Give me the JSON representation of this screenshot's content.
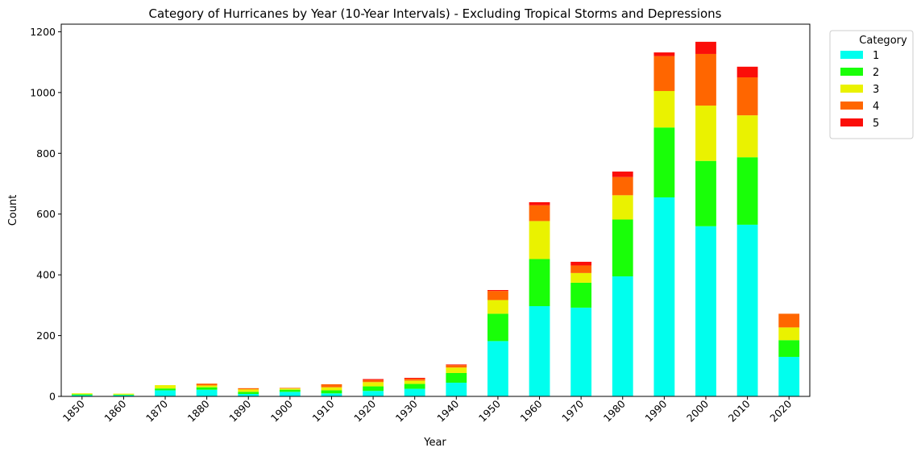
{
  "chart_data": {
    "type": "bar",
    "stacked": true,
    "title": "Category of Hurricanes by Year (10-Year Intervals) - Excluding Tropical Storms and Depressions",
    "xlabel": "Year",
    "ylabel": "Count",
    "ylim": [
      0,
      1225
    ],
    "yticks": [
      0,
      200,
      400,
      600,
      800,
      1000,
      1200
    ],
    "categories": [
      "1850",
      "1860",
      "1870",
      "1880",
      "1890",
      "1900",
      "1910",
      "1920",
      "1930",
      "1940",
      "1950",
      "1960",
      "1970",
      "1980",
      "1990",
      "2000",
      "2010",
      "2020"
    ],
    "legend_title": "Category",
    "legend_position": "outside upper right",
    "grid": false,
    "series": [
      {
        "name": "1",
        "color": "#00ffee",
        "values": [
          4,
          4,
          20,
          22,
          8,
          15,
          10,
          18,
          25,
          45,
          182,
          297,
          292,
          395,
          655,
          560,
          565,
          130
        ]
      },
      {
        "name": "2",
        "color": "#19ff08",
        "values": [
          3,
          2,
          6,
          8,
          7,
          7,
          10,
          15,
          16,
          32,
          90,
          155,
          82,
          187,
          230,
          215,
          222,
          55
        ]
      },
      {
        "name": "3",
        "color": "#eaf200",
        "values": [
          3,
          3,
          11,
          6,
          8,
          4,
          10,
          14,
          11,
          18,
          45,
          125,
          32,
          80,
          120,
          182,
          138,
          42
        ]
      },
      {
        "name": "4",
        "color": "#ff6600",
        "values": [
          0,
          0,
          0,
          6,
          4,
          2,
          10,
          7,
          6,
          8,
          30,
          52,
          25,
          60,
          115,
          170,
          125,
          45
        ]
      },
      {
        "name": "5",
        "color": "#fb0e09",
        "values": [
          0,
          0,
          0,
          0,
          0,
          0,
          0,
          3,
          3,
          2,
          3,
          10,
          12,
          18,
          12,
          40,
          35,
          0
        ]
      }
    ]
  }
}
